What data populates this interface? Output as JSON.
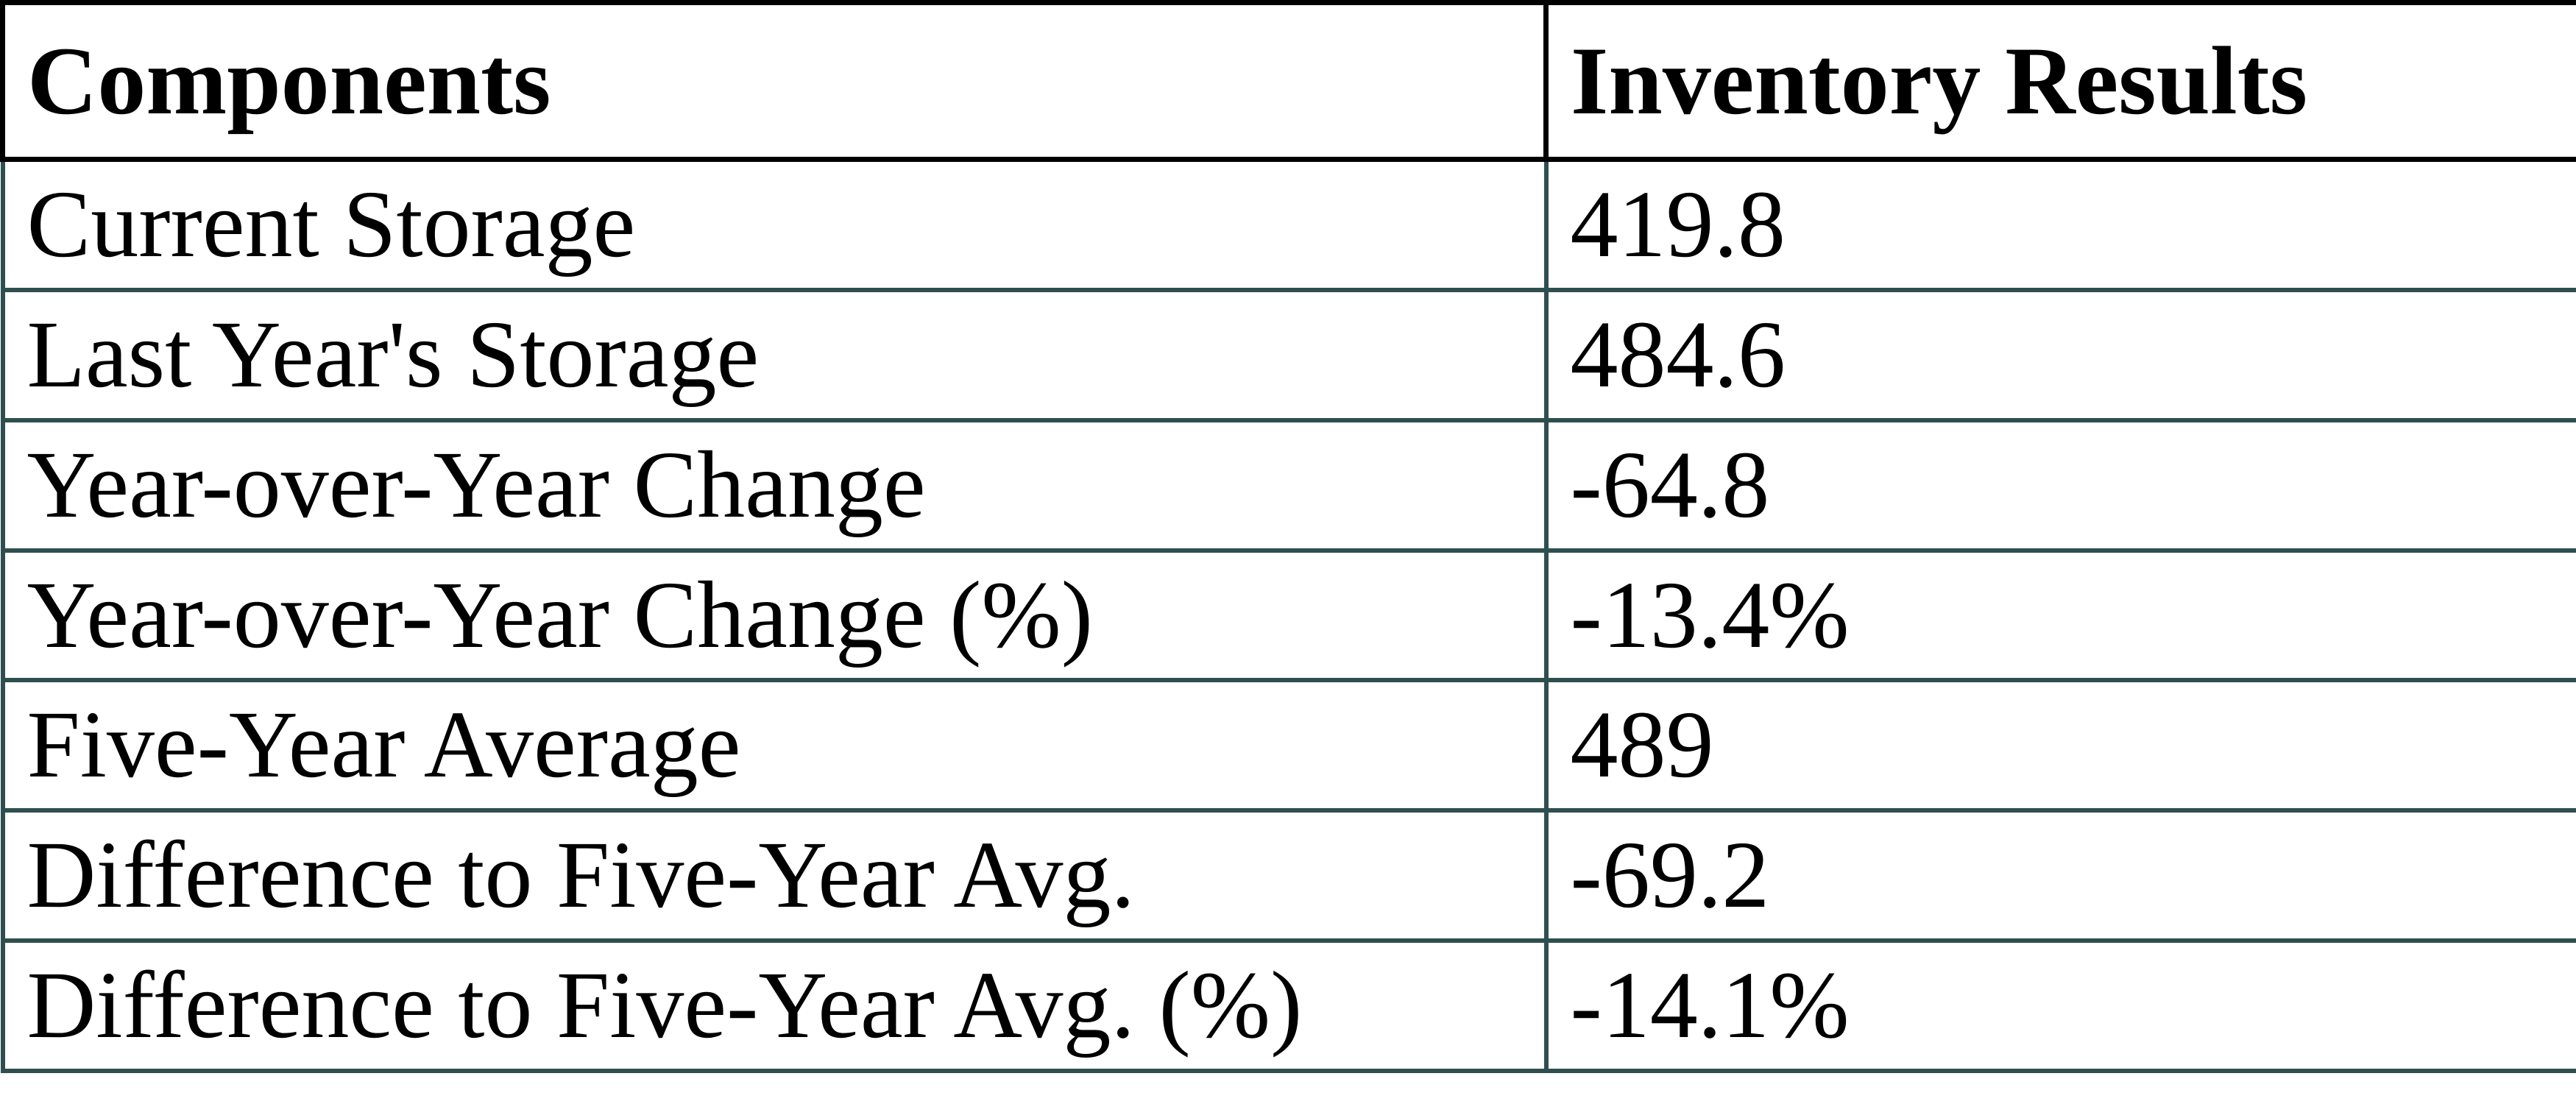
{
  "chart_data": {
    "type": "table",
    "title": "",
    "columns": [
      "Components",
      "Inventory Results"
    ],
    "rows": [
      [
        "Current Storage",
        "419.8"
      ],
      [
        "Last Year's Storage",
        "484.6"
      ],
      [
        "Year-over-Year Change",
        "-64.8"
      ],
      [
        "Year-over-Year Change (%)",
        "-13.4%"
      ],
      [
        "Five-Year Average",
        "489"
      ],
      [
        "Difference to Five-Year Avg.",
        "-69.2"
      ],
      [
        "Difference to Five-Year Avg. (%)",
        "-14.1%"
      ]
    ],
    "layout_hints": {
      "header_border_color": "#000000",
      "body_border_color": "#2f4f4f",
      "grid": true
    }
  },
  "table": {
    "headers": [
      "Components",
      "Inventory Results"
    ],
    "rows": [
      {
        "component": "Current Storage",
        "value": "419.8"
      },
      {
        "component": "Last Year's Storage",
        "value": "484.6"
      },
      {
        "component": "Year-over-Year Change",
        "value": "-64.8"
      },
      {
        "component": "Year-over-Year Change (%)",
        "value": "-13.4%"
      },
      {
        "component": "Five-Year Average",
        "value": "489"
      },
      {
        "component": "Difference to Five-Year Avg.",
        "value": "-69.2"
      },
      {
        "component": "Difference to Five-Year Avg. (%)",
        "value": "-14.1%"
      }
    ]
  },
  "colors": {
    "header_border": "#000000",
    "body_border": "#2f4f4f",
    "text": "#000000",
    "background": "#ffffff"
  }
}
